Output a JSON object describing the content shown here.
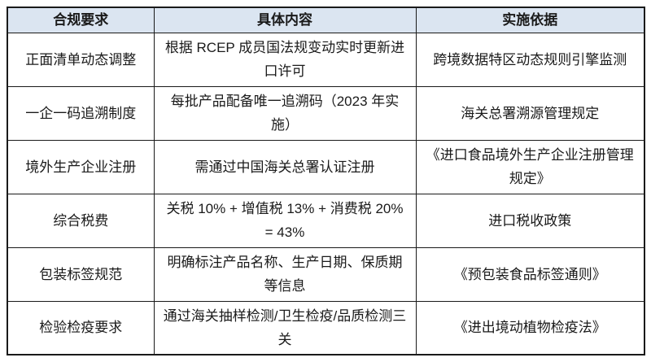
{
  "colors": {
    "header_bg": "#dbe5f1",
    "border": "#1a1a1a",
    "text": "#1a1a1a"
  },
  "table": {
    "headers": [
      "合规要求",
      "具体内容",
      "实施依据"
    ],
    "rows": [
      [
        "正面清单动态调整",
        "根据 RCEP 成员国法规变动实时更新进口许可",
        "跨境数据特区动态规则引擎监测"
      ],
      [
        "一企一码追溯制度",
        "每批产品配备唯一追溯码（2023 年实施）",
        "海关总署溯源管理规定"
      ],
      [
        "境外生产企业注册",
        "需通过中国海关总署认证注册",
        "《进口食品境外生产企业注册管理规定》"
      ],
      [
        "综合税费",
        "关税 10% + 增值税 13% + 消费税 20% = 43%",
        "进口税收政策"
      ],
      [
        "包装标签规范",
        "明确标注产品名称、生产日期、保质期等信息",
        "《预包装食品标签通则》"
      ],
      [
        "检验检疫要求",
        "通过海关抽样检测/卫生检疫/品质检测三关",
        "《进出境动植物检疫法》"
      ]
    ]
  }
}
